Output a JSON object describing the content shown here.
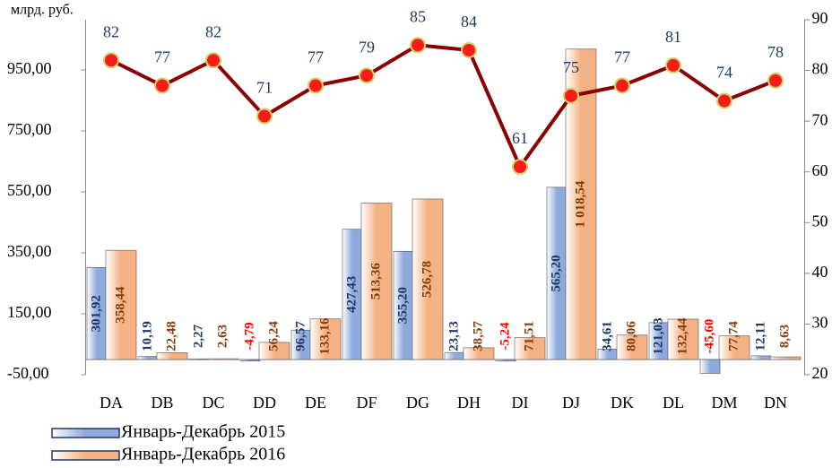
{
  "chart_data": {
    "type": "bar_line",
    "unit_label": "млрд. руб.",
    "categories": [
      "DA",
      "DB",
      "DC",
      "DD",
      "DE",
      "DF",
      "DG",
      "DH",
      "DI",
      "DJ",
      "DK",
      "DL",
      "DM",
      "DN"
    ],
    "series": [
      {
        "name": "Январь-Декабрь 2015",
        "color": "#8faadc",
        "label_color": "#1f3864",
        "values": [
          301.92,
          10.19,
          2.27,
          -4.79,
          96.57,
          427.43,
          355.2,
          23.13,
          -5.24,
          565.2,
          34.61,
          121.03,
          -45.6,
          12.11
        ],
        "value_labels": [
          "301,92",
          "10,19",
          "2,27",
          "-4,79",
          "96,57",
          "427,43",
          "355,20",
          "23,13",
          "-5,24",
          "565,20",
          "34,61",
          "121,03",
          "-45,60",
          "12,11"
        ]
      },
      {
        "name": "Январь-Декабрь 2016",
        "color": "#f4b183",
        "label_color": "#843c0c",
        "values": [
          358.44,
          22.48,
          2.63,
          56.24,
          133.16,
          513.36,
          526.78,
          38.57,
          71.51,
          1018.54,
          80.06,
          132.44,
          77.74,
          8.63
        ],
        "value_labels": [
          "358,44",
          "22,48",
          "2,63",
          "56,24",
          "133,16",
          "513,36",
          "526,78",
          "38,57",
          "71,51",
          "1 018,54",
          "80,06",
          "132,44",
          "77,74",
          "8,63"
        ]
      },
      {
        "color": "#8b0000",
        "marker_color": "#ff1a1a",
        "axis": "y2",
        "values": [
          82,
          77,
          82,
          71,
          77,
          79,
          85,
          84,
          61,
          75,
          77,
          81,
          74,
          78
        ]
      }
    ],
    "ylim": [
      -50,
      1115
    ],
    "yticks": [
      {
        "value": -50,
        "label": "-50,00"
      },
      {
        "value": 150,
        "label": "150,00"
      },
      {
        "value": 350,
        "label": "350,00"
      },
      {
        "value": 550,
        "label": "550,00"
      },
      {
        "value": 750,
        "label": "750,00"
      },
      {
        "value": 950,
        "label": "950,00"
      }
    ],
    "y2lim": [
      20,
      90
    ],
    "y2ticks": [
      20,
      30,
      40,
      50,
      60,
      70,
      80,
      90
    ],
    "negative_label_color": "#ff0000"
  }
}
